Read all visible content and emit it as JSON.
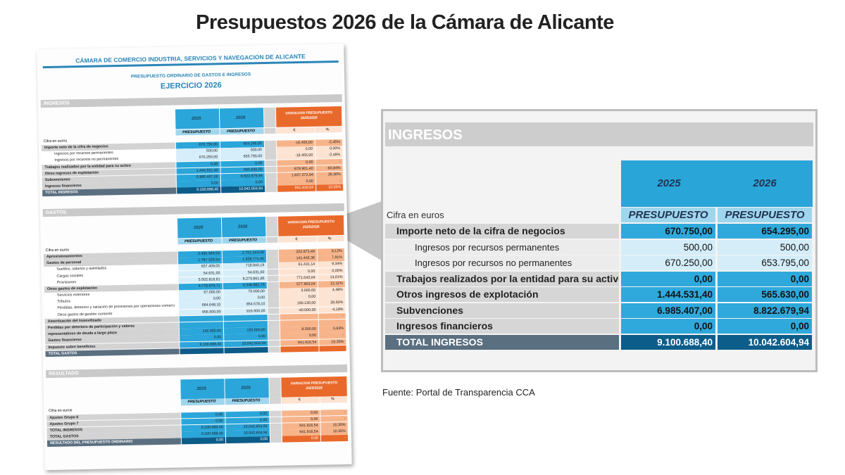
{
  "title": "Presupuestos 2026 de la Cámara de Alicante",
  "source": "Fuente: Portal de Transparencia CCA",
  "document": {
    "org": "CÁMARA DE COMERCIO INDUSTRIA, SERVICIOS  Y NAVEGACION DE ALICANTE",
    "subtitle": "PRESUPUESTO ORDINARIO DE GASTOS E INGRESOS",
    "exercise": "EJERCICIO 2026",
    "sections": [
      {
        "title": "INGRESOS",
        "years": [
          "2025",
          "2026"
        ],
        "column_label": "PRESUPUESTO",
        "variation_title": [
          "VARIACION PRESUPUESTO",
          "2025/2026"
        ],
        "variation_columns": [
          "€",
          "%"
        ],
        "unit": "Cifra en euros",
        "rows": [
          {
            "label": "Importe neto de la cifra de negocios",
            "style": "main",
            "values": [
              "670.750,00",
              "654.295,00",
              "-16.455,00",
              "-2,45%"
            ]
          },
          {
            "label": "Ingresos por recursos permanentes",
            "style": "sub",
            "values": [
              "500,00",
              "500,00",
              "0,00",
              "0,00%"
            ]
          },
          {
            "label": "Ingresos por recursos no permanentes",
            "style": "sub",
            "values": [
              "670.250,00",
              "653.795,00",
              "-16.455,00",
              "-2,46%"
            ]
          },
          {
            "label": "Trabajos realizados por la entidad para su activo",
            "style": "main",
            "values": [
              "0,00",
              "0,00",
              "0,00",
              "-"
            ]
          },
          {
            "label": "Otros ingresos de explotación",
            "style": "main",
            "values": [
              "1.444.531,40",
              "565.630,00",
              "-878.901,40",
              "-60,84%"
            ]
          },
          {
            "label": "Subvenciones",
            "style": "main",
            "values": [
              "6.985.407,00",
              "8.822.679,94",
              "1.837.272,94",
              "26,30%"
            ]
          },
          {
            "label": "Ingresos financieros",
            "style": "main",
            "values": [
              "0,00",
              "0,00",
              "0,00",
              "-"
            ]
          },
          {
            "label": "TOTAL INGRESOS",
            "style": "total",
            "values": [
              "9.100.688,40",
              "10.042.604,94",
              "941.916,54",
              "10,35%"
            ]
          }
        ]
      },
      {
        "title": "GASTOS",
        "years": [
          "2025",
          "2026"
        ],
        "column_label": "PRESUPUESTO",
        "variation_title": [
          "VARIACION PRESUPUESTO",
          "2025/2026"
        ],
        "variation_columns": [
          "€",
          "%"
        ],
        "unit": "Cifra en euros",
        "rows": [
          {
            "label": "Aprovisionamientos",
            "style": "main",
            "values": [
              "2.499.369,59",
              "2.702.243,08",
              "202.873,49",
              "8,12%"
            ]
          },
          {
            "label": "Gastos de personal",
            "style": "main",
            "values": [
              "1.787.329,54",
              "1.928.771,90",
              "141.442,36",
              "7,91%"
            ]
          },
          {
            "label": "Sueldos, salarios y asimilados",
            "style": "sub",
            "values": [
              "657.409,05",
              "718.840,19",
              "61.431,14",
              "9,34%"
            ]
          },
          {
            "label": "Cargas sociales",
            "style": "sub",
            "values": [
              "54.631,00",
              "54.631,00",
              "0,00",
              "0,00%"
            ]
          },
          {
            "label": "Provisiones",
            "style": "sub",
            "values": [
              "5.502.818,81",
              "6.273.861,85",
              "771.043,04",
              "14,01%"
            ]
          },
          {
            "label": "Otros gastos de explotación",
            "style": "main",
            "values": [
              "4.770.979,71",
              "5.348.882,75",
              "577.903,04",
              "12,11%"
            ]
          },
          {
            "label": "Servicios exteriores",
            "style": "sub",
            "values": [
              "67.000,00",
              "70.000,00",
              "3.000,00",
              "4,48%"
            ]
          },
          {
            "label": "Tributos",
            "style": "sub",
            "values": [
              "0,00",
              "0,00",
              "0,00",
              null
            ]
          },
          {
            "label": "Pérdidas, deterioro y variación de provisiones por operaciones comerci",
            "style": "sub",
            "values": [
              "664.648,10",
              "854.578,10",
              "190.130,00",
              "28,60%"
            ]
          },
          {
            "label": "Otros gastos de gestión corriente",
            "style": "sub",
            "values": [
              "956.500,00",
              "916.500,00",
              "-40.000,00",
              "-4,18%"
            ]
          },
          {
            "label": "Amortización del inmovilizado",
            "style": "main",
            "values": [
              null,
              null,
              null,
              "-"
            ]
          },
          {
            "label": "Perdidas por deterioro de participación y valores",
            "style": "main",
            "values": [
              null,
              null,
              null,
              null
            ]
          },
          {
            "label": "representativos de deuda a largo plazo",
            "style": "main",
            "values": [
              "142.900,00",
              "150.900,00",
              "8.000,00",
              "5,63%"
            ]
          },
          {
            "label": "Gastos financieros",
            "style": "main",
            "values": [
              "0,00",
              "0,00",
              "0,00",
              "-"
            ]
          },
          {
            "label": "Impuesto sobre beneficios",
            "style": "main",
            "values": [
              "9.100.688,40",
              "10.042.604,94",
              "941.916,54",
              "10,35%"
            ]
          },
          {
            "label": "TOTAL GASTOS",
            "style": "total",
            "values": [
              null,
              null,
              null,
              null
            ]
          }
        ]
      },
      {
        "title": "RESULTADO",
        "years": [
          "2025",
          "2026"
        ],
        "column_label": "PRESUPUESTO",
        "variation_title": [
          "VARIACION PRESUPUESTO",
          "2025/2026"
        ],
        "variation_columns": [
          "€",
          "%"
        ],
        "unit": "Cifra en euros",
        "rows": [
          {
            "label": "Ajustes Grupo 6",
            "style": "main",
            "values": [
              "0,00",
              "0,00",
              "0,00",
              "-"
            ]
          },
          {
            "label": "Ajustes Grupo 7",
            "style": "main",
            "values": [
              "0,00",
              "0,00",
              "0,00",
              "-"
            ]
          },
          {
            "label": "TOTAL INGRESOS",
            "style": "main",
            "values": [
              "9.100.688,40",
              "10.042.604,94",
              "941.916,54",
              "10,35%"
            ]
          },
          {
            "label": "TOTAL GASTOS",
            "style": "main",
            "values": [
              "9.100.688,40",
              "10.042.604,94",
              "941.916,54",
              "10,35%"
            ]
          },
          {
            "label": "RESULTADO DEL PRESUPUESTO ORDINARIO",
            "style": "total",
            "values": [
              "0,00",
              "0,00",
              "0,00",
              "-"
            ]
          }
        ]
      }
    ]
  }
}
